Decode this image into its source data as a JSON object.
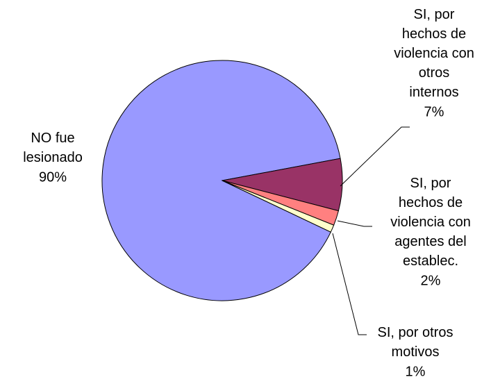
{
  "chart_data": {
    "type": "pie",
    "categories": [
      "NO fue lesionado",
      "SI, por hechos de violencia con otros internos",
      "SI, por hechos de violencia con agentes del establec.",
      "SI, por otros motivos"
    ],
    "values": [
      90,
      7,
      2,
      1
    ],
    "value_labels": [
      "90%",
      "7%",
      "2%",
      "1%"
    ],
    "colors": [
      "#9999ff",
      "#993366",
      "#ff8080",
      "#ffffcc"
    ]
  }
}
